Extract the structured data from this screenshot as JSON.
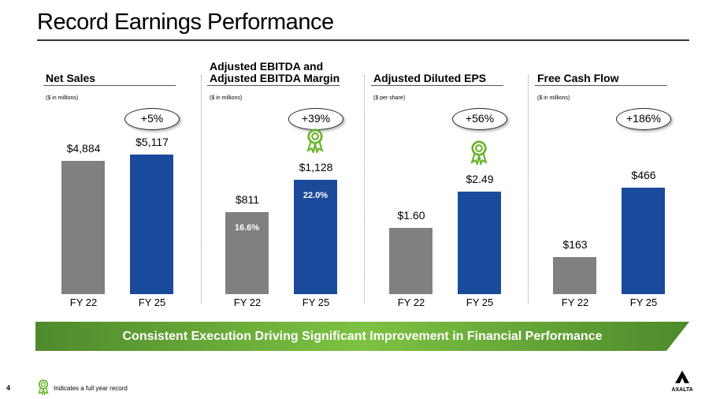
{
  "title": "Record Earnings Performance",
  "banner": "Consistent Execution Driving Significant Improvement in Financial Performance",
  "footer": {
    "page": "4",
    "note": "Indicates a full year record",
    "logo": "AXALTA",
    "award_icon": "award-ribbon-icon"
  },
  "colors": {
    "fy22": "#808080",
    "fy25": "#1a4a9c",
    "banner": "#7dc242",
    "award": "#6ab42d"
  },
  "chart_data": [
    {
      "type": "bar",
      "title": "Net Sales",
      "subtitle": "($ in millions)",
      "categories": [
        "FY 22",
        "FY 25"
      ],
      "values": [
        4884,
        5117
      ],
      "labels": [
        "$4,884",
        "$5,117"
      ],
      "change": "+5%",
      "record": false
    },
    {
      "type": "bar",
      "title": "Adjusted EBITDA and Adjusted EBITDA Margin",
      "subtitle": "($ in millions)",
      "categories": [
        "FY 22",
        "FY 25"
      ],
      "values": [
        811,
        1128
      ],
      "labels": [
        "$811",
        "$1,128"
      ],
      "margins": [
        "16.6%",
        "22.0%"
      ],
      "change": "+39%",
      "record": true
    },
    {
      "type": "bar",
      "title": "Adjusted Diluted EPS",
      "subtitle": "($ per share)",
      "categories": [
        "FY 22",
        "FY 25"
      ],
      "values": [
        1.6,
        2.49
      ],
      "labels": [
        "$1.60",
        "$2.49"
      ],
      "change": "+56%",
      "record": true
    },
    {
      "type": "bar",
      "title": "Free Cash Flow",
      "subtitle": "($ in millions)",
      "categories": [
        "FY 22",
        "FY 25"
      ],
      "values": [
        163,
        466
      ],
      "labels": [
        "$163",
        "$466"
      ],
      "change": "+186%",
      "record": false
    }
  ]
}
